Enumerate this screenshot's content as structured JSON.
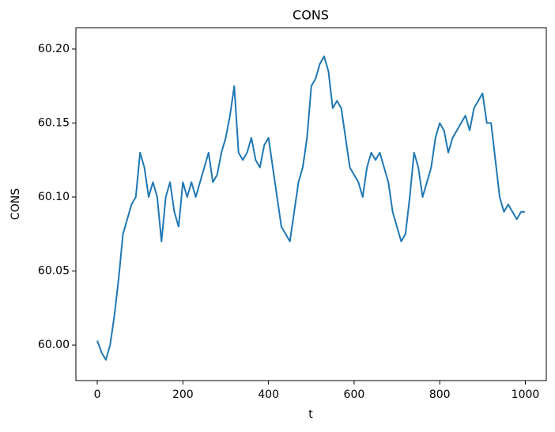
{
  "chart_data": {
    "type": "line",
    "title": "CONS",
    "xlabel": "t",
    "ylabel": "CONS",
    "color": "#1f77b4",
    "grid": false,
    "x": [
      0,
      10,
      20,
      30,
      40,
      50,
      60,
      70,
      80,
      90,
      100,
      110,
      120,
      130,
      140,
      150,
      160,
      170,
      180,
      190,
      200,
      210,
      220,
      230,
      240,
      250,
      260,
      270,
      280,
      290,
      300,
      310,
      320,
      330,
      340,
      350,
      360,
      370,
      380,
      390,
      400,
      410,
      420,
      430,
      440,
      450,
      460,
      470,
      480,
      490,
      500,
      510,
      520,
      530,
      540,
      550,
      560,
      570,
      580,
      590,
      600,
      610,
      620,
      630,
      640,
      650,
      660,
      670,
      680,
      690,
      700,
      710,
      720,
      730,
      740,
      750,
      760,
      770,
      780,
      790,
      800,
      810,
      820,
      830,
      840,
      850,
      860,
      870,
      880,
      890,
      900,
      910,
      920,
      930,
      940,
      950,
      960,
      970,
      980,
      990,
      999
    ],
    "values": [
      60.003,
      59.995,
      59.99,
      60.0,
      60.02,
      60.045,
      60.075,
      60.085,
      60.095,
      60.1,
      60.13,
      60.12,
      60.1,
      60.11,
      60.1,
      60.07,
      60.1,
      60.11,
      60.09,
      60.08,
      60.11,
      60.1,
      60.11,
      60.1,
      60.11,
      60.12,
      60.13,
      60.11,
      60.115,
      60.13,
      60.14,
      60.155,
      60.175,
      60.13,
      60.125,
      60.13,
      60.14,
      60.125,
      60.12,
      60.135,
      60.14,
      60.12,
      60.1,
      60.08,
      60.075,
      60.07,
      60.09,
      60.11,
      60.12,
      60.14,
      60.175,
      60.18,
      60.19,
      60.195,
      60.185,
      60.16,
      60.165,
      60.16,
      60.14,
      60.12,
      60.115,
      60.11,
      60.1,
      60.12,
      60.13,
      60.125,
      60.13,
      60.12,
      60.11,
      60.09,
      60.08,
      60.07,
      60.075,
      60.1,
      60.13,
      60.12,
      60.1,
      60.11,
      60.12,
      60.14,
      60.15,
      60.145,
      60.13,
      60.14,
      60.145,
      60.15,
      60.155,
      60.145,
      60.16,
      60.165,
      60.17,
      60.15,
      60.15,
      60.125,
      60.1,
      60.09,
      60.095,
      60.09,
      60.085,
      60.09,
      60.09
    ],
    "xlim": [
      -49.95,
      1048.95
    ],
    "ylim": [
      59.976,
      60.2144
    ],
    "xticks": [
      0,
      200,
      400,
      600,
      800,
      1000
    ],
    "yticks": [
      {
        "value": 60.0,
        "label": "60.00"
      },
      {
        "value": 60.05,
        "label": "60.05"
      },
      {
        "value": 60.1,
        "label": "60.10"
      },
      {
        "value": 60.15,
        "label": "60.15"
      },
      {
        "value": 60.2,
        "label": "60.20"
      }
    ]
  }
}
